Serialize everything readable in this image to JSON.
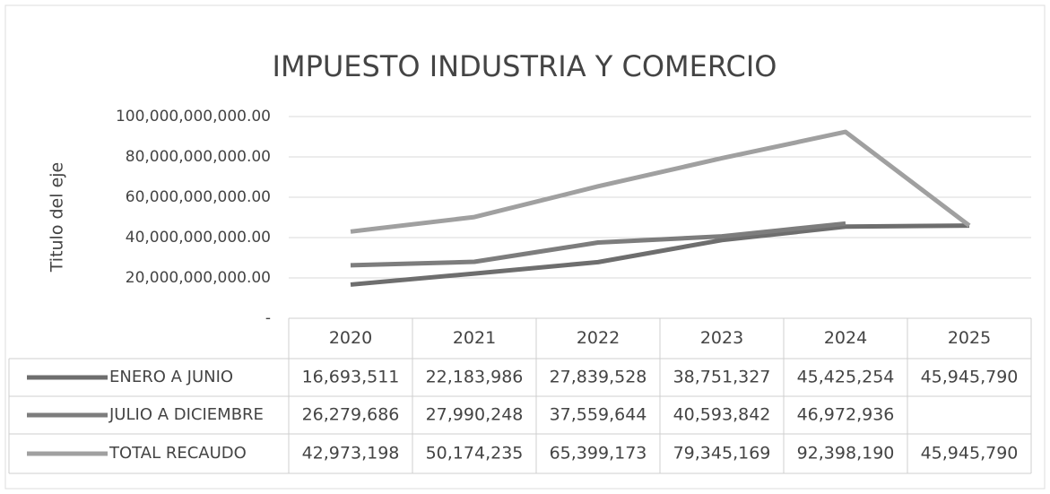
{
  "chart_data": {
    "type": "line",
    "title": "IMPUESTO INDUSTRIA Y COMERCIO",
    "y_label": "Titulo del eje",
    "categories": [
      "2020",
      "2021",
      "2022",
      "2023",
      "2024",
      "2025"
    ],
    "series": [
      {
        "name": "ENERO A JUNIO",
        "color": "#6e6e6e",
        "values": [
          16693511000,
          22183986000,
          27839528000,
          38751327000,
          45425254000,
          45945790000
        ],
        "value_labels": [
          "16,693,511",
          "22,183,986",
          "27,839,528",
          "38,751,327",
          "45,425,254",
          "45,945,790"
        ]
      },
      {
        "name": "JULIO A DICIEMBRE",
        "color": "#7d7d7d",
        "values": [
          26279686000,
          27990248000,
          37559644000,
          40593842000,
          46972936000,
          null
        ],
        "value_labels": [
          "26,279,686",
          "27,990,248",
          "37,559,644",
          "40,593,842",
          "46,972,936",
          null
        ]
      },
      {
        "name": "TOTAL RECAUDO",
        "color": "#a0a0a0",
        "values": [
          42973198000,
          50174235000,
          65399173000,
          79345169000,
          92398190000,
          45945790000
        ],
        "value_labels": [
          "42,973,198",
          "50,174,235",
          "65,399,173",
          "79,345,169",
          "92,398,190",
          "45,945,790"
        ]
      }
    ],
    "ylim": [
      0,
      100000000000
    ],
    "yticks": [
      {
        "value": 0,
        "label": "-"
      },
      {
        "value": 20000000000,
        "label": "20,000,000,000.00"
      },
      {
        "value": 40000000000,
        "label": "40,000,000,000.00"
      },
      {
        "value": 60000000000,
        "label": "60,000,000,000.00"
      },
      {
        "value": 80000000000,
        "label": "80,000,000,000.00"
      },
      {
        "value": 100000000000,
        "label": "100,000,000,000.00"
      }
    ],
    "grid": true
  }
}
